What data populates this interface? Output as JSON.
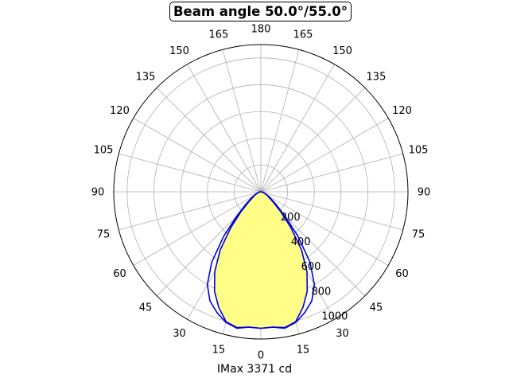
{
  "chart_data": {
    "type": "polar",
    "title": "Beam angle 50.0°/55.0°",
    "xlabel": "IMax 3371 cd",
    "angle_tick_labels": [
      "0",
      "15",
      "30",
      "45",
      "60",
      "75",
      "90",
      "105",
      "120",
      "135",
      "150",
      "165",
      "180",
      "165",
      "150",
      "135",
      "120",
      "105",
      "90",
      "75",
      "60",
      "45",
      "30",
      "15"
    ],
    "radial_tick_labels": [
      "200",
      "400",
      "600",
      "800",
      "1000"
    ],
    "radial_ticks": [
      200,
      400,
      600,
      800,
      1000
    ],
    "rlim": [
      0,
      1100
    ],
    "grid": true,
    "fill_color": "#ffff88",
    "line_color": "#0000dd",
    "series": [
      {
        "angles_deg": [
          0,
          5,
          10,
          15,
          20,
          25,
          30,
          35,
          40,
          45,
          50,
          60,
          70,
          80,
          90
        ],
        "values": [
          1020,
          1015,
          1035,
          1010,
          960,
          900,
          800,
          640,
          430,
          250,
          150,
          70,
          30,
          12,
          0
        ]
      },
      {
        "angles_deg": [
          0,
          5,
          10,
          15,
          20,
          25,
          30,
          35,
          40,
          45,
          50,
          60,
          70,
          80,
          90
        ],
        "values": [
          1020,
          1015,
          1030,
          1005,
          920,
          820,
          690,
          530,
          350,
          210,
          120,
          55,
          25,
          10,
          0
        ]
      }
    ]
  }
}
